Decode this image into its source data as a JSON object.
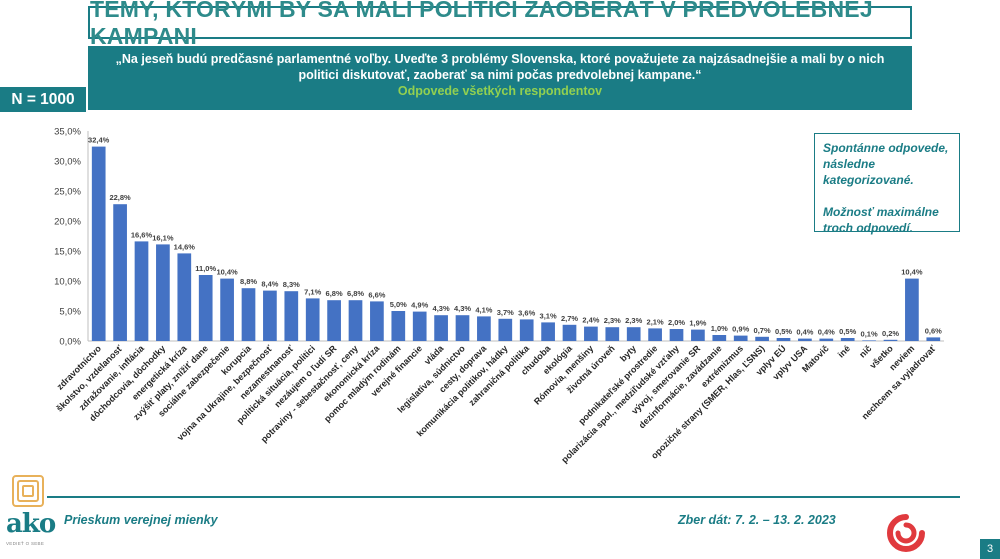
{
  "title": "TÉMY, KTORÝMI BY SA MALI POLITICI ZAOBERAŤ V PREDVOLEBNEJ KAMPANI",
  "question": {
    "line1": "„Na jeseň budú predčasné parlamentné voľby. Uveďte 3 problémy Slovenska, ktoré považujete za najzásadnejšie a mali by o nich",
    "line2": "politici diskutovať, zaoberať sa nimi počas predvolebnej kampane.“",
    "subtitle": "Odpovede všetkých respondentov"
  },
  "sample": "N = 1000",
  "note": {
    "line1": "Spontánne odpovede, následne kategorizované.",
    "line2": "Možnosť maximálne troch odpovedí."
  },
  "footer": {
    "left": "Prieskum verejnej mienky",
    "right": "Zber dát: 7. 2. – 13. 2. 2023",
    "page": "3",
    "logo_text": "ako",
    "logo_sub": "VEDIEŤ O SEBE"
  },
  "colors": {
    "accent": "#1a7c85",
    "bar": "#4472c4",
    "title": "#2e8b8b",
    "subtitle": "#92d050",
    "swirl": "#e03a3e"
  },
  "chart_data": {
    "type": "bar",
    "title": "",
    "xlabel": "",
    "ylabel": "",
    "ylim": [
      0,
      35
    ],
    "yticks": [
      "0,0%",
      "5,0%",
      "10,0%",
      "15,0%",
      "20,0%",
      "25,0%",
      "30,0%",
      "35,0%"
    ],
    "categories": [
      "zdravotníctvo",
      "školstvo, vzdelanosť",
      "zdražovanie, inflácia",
      "dôchodcovia, dôchodky",
      "energetická kríza",
      "zvýšiť platy, znížiť dane",
      "sociálne zabezpečenie",
      "korupcia",
      "vojna na Ukrajine, bezpečnosť",
      "nezamestnanosť",
      "politická situácia, politici",
      "nezáujem o ľudí SR",
      "potraviny - sebestačnosť, ceny",
      "ekonomická kríza",
      "pomoc mladým rodinám",
      "verejné financie",
      "vláda",
      "legislatíva, súdnictvo",
      "cesty, doprava",
      "komunikácia politikov, hádky",
      "zahraničná politika",
      "chudoba",
      "ekológia",
      "Rómovia, menšiny",
      "životná úroveň",
      "byty",
      "podnikateľské prostredie",
      "polarizácia spol., medziľudské vzťahy",
      "vývoj, smerovanie SR",
      "dezinformácie, zavádzanie",
      "extrémizmus",
      "opozičné strany (SMER, Hlas, ĽSNS)",
      "vplyv EÚ",
      "vplyv USA",
      "Matovič",
      "iné",
      "nič",
      "všetko",
      "neviem",
      "nechcem sa vyjadrovať"
    ],
    "values": [
      32.4,
      22.8,
      16.6,
      16.1,
      14.6,
      11.0,
      10.4,
      8.8,
      8.4,
      8.3,
      7.1,
      6.8,
      6.8,
      6.6,
      5.0,
      4.9,
      4.3,
      4.3,
      4.1,
      3.7,
      3.6,
      3.1,
      2.7,
      2.4,
      2.3,
      2.3,
      2.1,
      2.0,
      1.9,
      1.0,
      0.9,
      0.7,
      0.5,
      0.4,
      0.4,
      0.5,
      0.1,
      0.2,
      10.4,
      0.6
    ],
    "labels": [
      "32,4%",
      "22,8%",
      "16,6%",
      "16,1%",
      "14,6%",
      "11,0%",
      "10,4%",
      "8,8%",
      "8,4%",
      "8,3%",
      "7,1%",
      "6,8%",
      "6,8%",
      "6,6%",
      "5,0%",
      "4,9%",
      "4,3%",
      "4,3%",
      "4,1%",
      "3,7%",
      "3,6%",
      "3,1%",
      "2,7%",
      "2,4%",
      "2,3%",
      "2,3%",
      "2,1%",
      "2,0%",
      "1,9%",
      "1,0%",
      "0,9%",
      "0,7%",
      "0,5%",
      "0,4%",
      "0,4%",
      "0,5%",
      "0,1%",
      "0,2%",
      "10,4%",
      "0,6%"
    ]
  }
}
